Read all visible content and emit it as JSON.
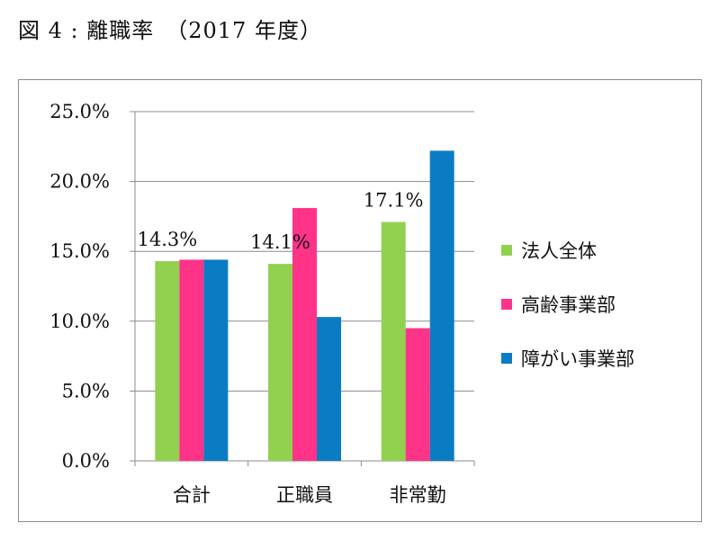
{
  "title": "図 4 : 離職率　（2017 年度）",
  "chart_data": {
    "type": "bar",
    "title": "図 4 : 離職率　（2017 年度）",
    "categories": [
      "合計",
      "正職員",
      "非常勤"
    ],
    "series": [
      {
        "name": "法人全体",
        "color": "#92d050",
        "values": [
          14.3,
          14.1,
          17.1
        ]
      },
      {
        "name": "高齢事業部",
        "color": "#ff3388",
        "values": [
          14.4,
          18.1,
          9.5
        ]
      },
      {
        "name": "障がい事業部",
        "color": "#0a7cc4",
        "values": [
          14.4,
          10.3,
          22.2
        ]
      }
    ],
    "data_labels": [
      {
        "category": "合計",
        "text": "14.3%"
      },
      {
        "category": "正職員",
        "text": "14.1%"
      },
      {
        "category": "非常勤",
        "text": "17.1%"
      }
    ],
    "y_ticks": [
      "0.0%",
      "5.0%",
      "10.0%",
      "15.0%",
      "20.0%",
      "25.0%"
    ],
    "ylim": [
      0,
      25
    ],
    "grid": true,
    "legend_position": "right"
  }
}
